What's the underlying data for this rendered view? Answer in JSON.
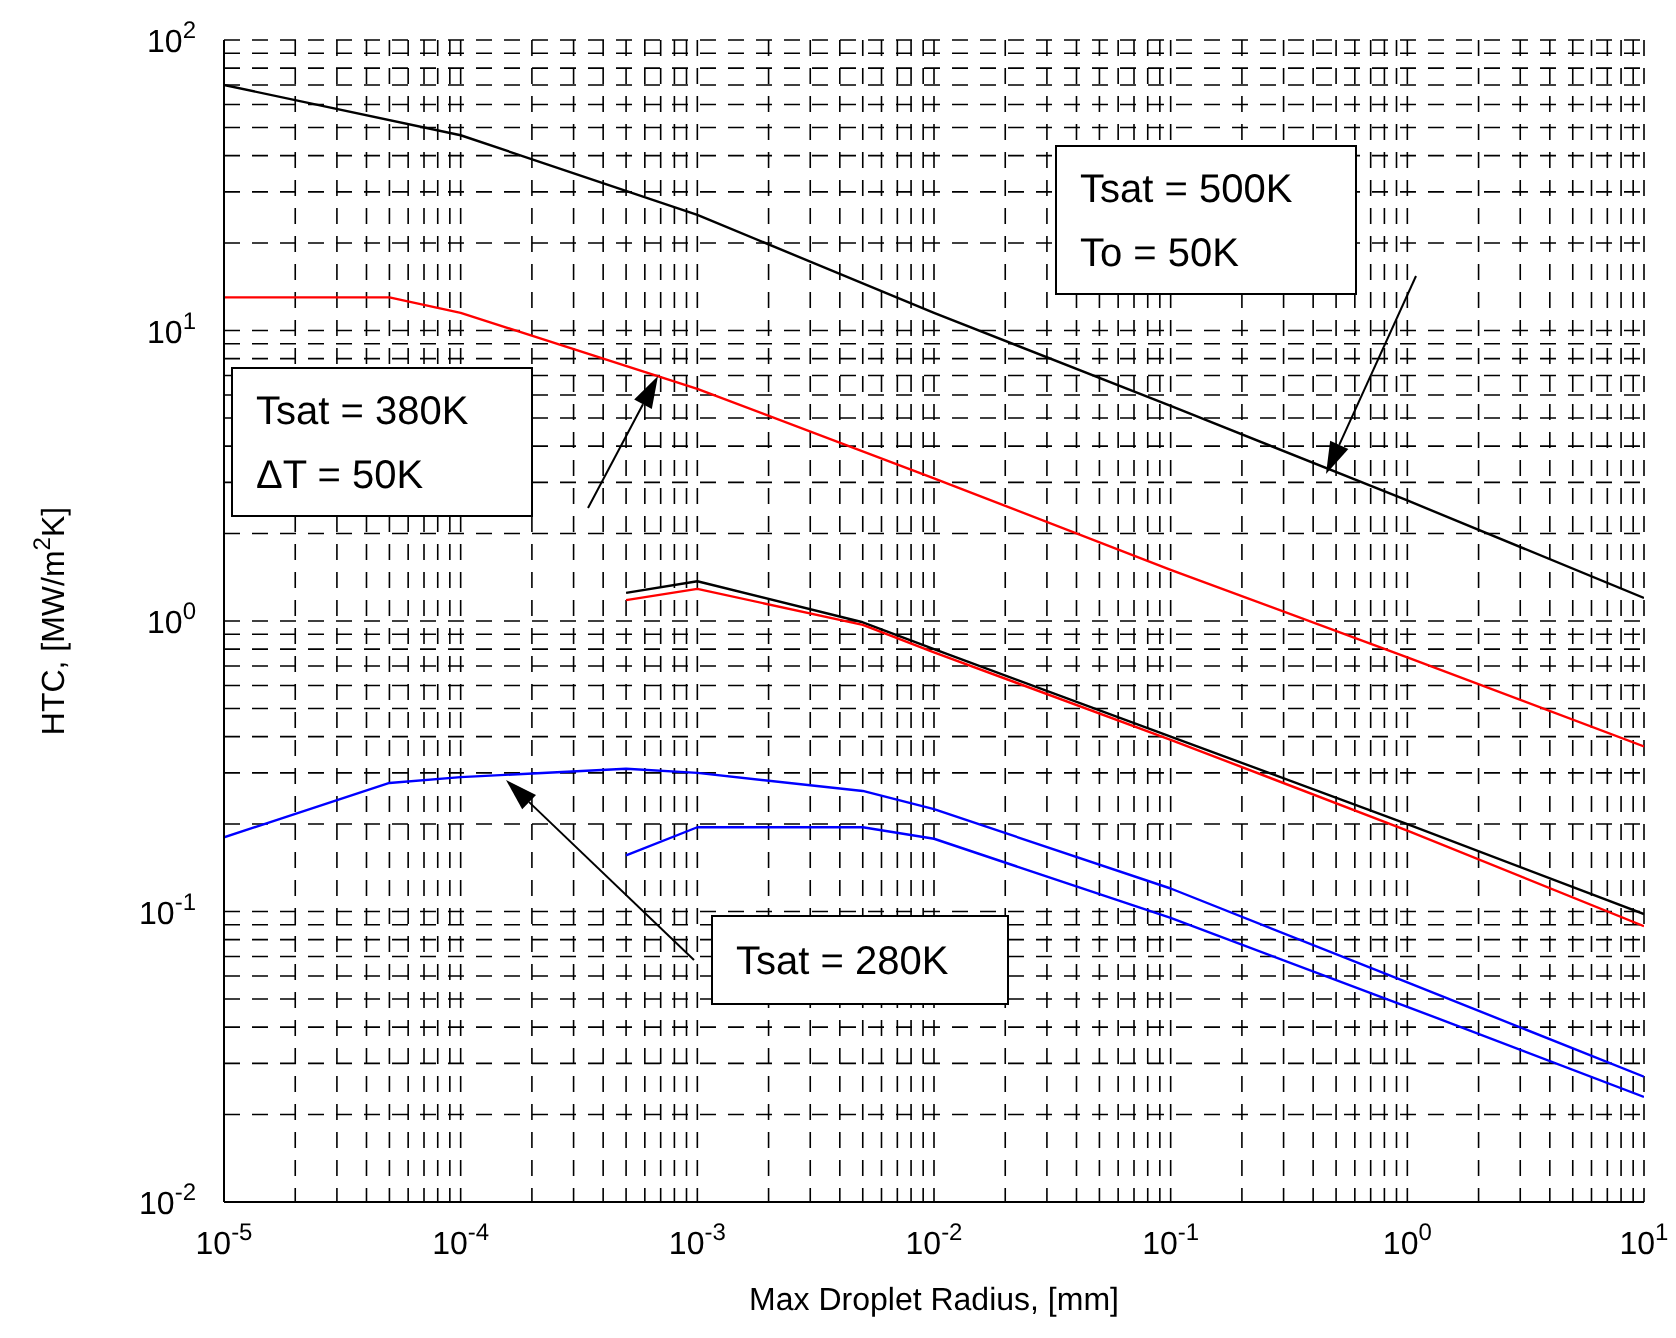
{
  "chart_data": {
    "type": "line",
    "xlabel": "Max Droplet Radius, [mm]",
    "ylabel": "HTC, [MW/m$^{2}$K]",
    "log": "xy",
    "grid": true,
    "line_style": "solid",
    "marker": "none",
    "xlim": [
      1e-05,
      10
    ],
    "ylim": [
      0.01,
      100
    ],
    "xticks": [
      {
        "value": 1e-05,
        "label": "10$^{-5}$"
      },
      {
        "value": 2e-05,
        "label": null
      },
      {
        "value": 3e-05,
        "label": null
      },
      {
        "value": 4e-05,
        "label": null
      },
      {
        "value": 5e-05,
        "label": null
      },
      {
        "value": 6e-05,
        "label": null
      },
      {
        "value": 7e-05,
        "label": null
      },
      {
        "value": 8e-05,
        "label": null
      },
      {
        "value": 9e-05,
        "label": null
      },
      {
        "value": 0.0001,
        "label": "10$^{-4}$"
      },
      {
        "value": 0.0002,
        "label": null
      },
      {
        "value": 0.0003,
        "label": null
      },
      {
        "value": 0.0004,
        "label": null
      },
      {
        "value": 0.0005,
        "label": null
      },
      {
        "value": 0.0006,
        "label": null
      },
      {
        "value": 0.0007,
        "label": null
      },
      {
        "value": 0.0008,
        "label": null
      },
      {
        "value": 0.0009,
        "label": null
      },
      {
        "value": 0.001,
        "label": "10$^{-3}$"
      },
      {
        "value": 0.002,
        "label": null
      },
      {
        "value": 0.003,
        "label": null
      },
      {
        "value": 0.004,
        "label": null
      },
      {
        "value": 0.005,
        "label": null
      },
      {
        "value": 0.006,
        "label": null
      },
      {
        "value": 0.007,
        "label": null
      },
      {
        "value": 0.008,
        "label": null
      },
      {
        "value": 0.009,
        "label": null
      },
      {
        "value": 0.01,
        "label": "10$^{-2}$"
      },
      {
        "value": 0.02,
        "label": null
      },
      {
        "value": 0.03,
        "label": null
      },
      {
        "value": 0.04,
        "label": null
      },
      {
        "value": 0.05,
        "label": null
      },
      {
        "value": 0.06,
        "label": null
      },
      {
        "value": 0.07,
        "label": null
      },
      {
        "value": 0.08,
        "label": null
      },
      {
        "value": 0.09,
        "label": null
      },
      {
        "value": 0.1,
        "label": "10$^{-1}$"
      },
      {
        "value": 0.2,
        "label": null
      },
      {
        "value": 0.3,
        "label": null
      },
      {
        "value": 0.4,
        "label": null
      },
      {
        "value": 0.5,
        "label": null
      },
      {
        "value": 0.6,
        "label": null
      },
      {
        "value": 0.7,
        "label": null
      },
      {
        "value": 0.8,
        "label": null
      },
      {
        "value": 0.9,
        "label": null
      },
      {
        "value": 1,
        "label": "10$^{0}$"
      },
      {
        "value": 2,
        "label": null
      },
      {
        "value": 3,
        "label": null
      },
      {
        "value": 4,
        "label": null
      },
      {
        "value": 5,
        "label": null
      },
      {
        "value": 6,
        "label": null
      },
      {
        "value": 7,
        "label": null
      },
      {
        "value": 8,
        "label": null
      },
      {
        "value": 9,
        "label": null
      },
      {
        "value": 10,
        "label": "10$^{1}$"
      }
    ],
    "yticks": [
      {
        "value": 0.01,
        "label": "10$^{-2}$"
      },
      {
        "value": 0.02,
        "label": null
      },
      {
        "value": 0.03,
        "label": null
      },
      {
        "value": 0.04,
        "label": null
      },
      {
        "value": 0.05,
        "label": null
      },
      {
        "value": 0.06,
        "label": null
      },
      {
        "value": 0.07,
        "label": null
      },
      {
        "value": 0.08,
        "label": null
      },
      {
        "value": 0.09,
        "label": null
      },
      {
        "value": 0.1,
        "label": "10$^{-1}$"
      },
      {
        "value": 0.2,
        "label": null
      },
      {
        "value": 0.3,
        "label": null
      },
      {
        "value": 0.4,
        "label": null
      },
      {
        "value": 0.5,
        "label": null
      },
      {
        "value": 0.6,
        "label": null
      },
      {
        "value": 0.7,
        "label": null
      },
      {
        "value": 0.8,
        "label": null
      },
      {
        "value": 0.9,
        "label": null
      },
      {
        "value": 1,
        "label": "10$^{0}$"
      },
      {
        "value": 2,
        "label": null
      },
      {
        "value": 3,
        "label": null
      },
      {
        "value": 4,
        "label": null
      },
      {
        "value": 5,
        "label": null
      },
      {
        "value": 6,
        "label": null
      },
      {
        "value": 7,
        "label": null
      },
      {
        "value": 8,
        "label": null
      },
      {
        "value": 9,
        "label": null
      },
      {
        "value": 10,
        "label": "10$^{1}$"
      },
      {
        "value": 20,
        "label": null
      },
      {
        "value": 30,
        "label": null
      },
      {
        "value": 40,
        "label": null
      },
      {
        "value": 50,
        "label": null
      },
      {
        "value": 60,
        "label": null
      },
      {
        "value": 70,
        "label": null
      },
      {
        "value": 80,
        "label": null
      },
      {
        "value": 90,
        "label": null
      },
      {
        "value": 100,
        "label": "10$^{2}$"
      }
    ],
    "series": [
      {
        "color": "#000000",
        "x": [
          1e-05,
          0.0001,
          0.001,
          0.01,
          0.1,
          1,
          10
        ],
        "values": [
          70,
          47,
          25,
          11.5,
          5.5,
          2.6,
          1.2
        ]
      },
      {
        "color": "#ff0000",
        "x": [
          1e-05,
          5e-05,
          0.0001,
          0.001,
          0.01,
          0.1,
          1,
          10
        ],
        "values": [
          13,
          13,
          11.5,
          6.3,
          3.1,
          1.5,
          0.75,
          0.37
        ]
      },
      {
        "color": "#000000",
        "x": [
          0.0005,
          0.001,
          0.005,
          0.01,
          0.1,
          1,
          10
        ],
        "values": [
          1.25,
          1.37,
          0.99,
          0.8,
          0.4,
          0.2,
          0.098
        ]
      },
      {
        "color": "#ff0000",
        "x": [
          0.0005,
          0.001,
          0.005,
          0.01,
          0.1,
          1,
          10
        ],
        "values": [
          1.18,
          1.29,
          0.97,
          0.78,
          0.39,
          0.19,
          0.089
        ]
      },
      {
        "color": "#0000ff",
        "x": [
          1e-05,
          5e-05,
          0.0001,
          0.0005,
          0.001,
          0.005,
          0.01,
          0.1,
          1,
          10
        ],
        "values": [
          0.18,
          0.277,
          0.29,
          0.31,
          0.3,
          0.26,
          0.225,
          0.12,
          0.057,
          0.027
        ]
      },
      {
        "color": "#0000ff",
        "x": [
          0.0005,
          0.001,
          0.005,
          0.01,
          0.1,
          1,
          10
        ],
        "values": [
          0.156,
          0.195,
          0.195,
          0.178,
          0.095,
          0.047,
          0.023
        ]
      }
    ],
    "annotations": [
      "Tsat = 500K\nTo = 50K",
      "Tsat = 380K\nΔT = 50K",
      "Tsat = 280K"
    ]
  }
}
